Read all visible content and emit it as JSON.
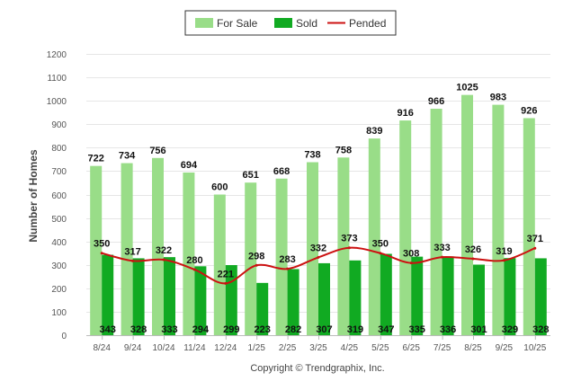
{
  "chart_data": {
    "type": "bar",
    "ylabel": "Number of Homes",
    "xlabel": "",
    "ylim": [
      0,
      1200
    ],
    "yticks": [
      0,
      100,
      200,
      300,
      400,
      500,
      600,
      700,
      800,
      900,
      1000,
      1100,
      1200
    ],
    "grid": true,
    "legend_position": "top-center",
    "categories": [
      "8/24",
      "9/24",
      "10/24",
      "11/24",
      "12/24",
      "1/25",
      "2/25",
      "3/25",
      "4/25",
      "5/25",
      "6/25",
      "7/25",
      "8/25",
      "9/25",
      "10/25"
    ],
    "series": [
      {
        "name": "For Sale",
        "kind": "bar",
        "color": "#99dd88",
        "values": [
          722,
          734,
          756,
          694,
          600,
          651,
          668,
          738,
          758,
          839,
          916,
          966,
          1025,
          983,
          926
        ]
      },
      {
        "name": "Sold",
        "kind": "bar",
        "color": "#11aa22",
        "values": [
          343,
          328,
          333,
          294,
          299,
          223,
          282,
          307,
          319,
          347,
          335,
          336,
          301,
          329,
          328
        ]
      },
      {
        "name": "Pended",
        "kind": "line",
        "color": "#cc1111",
        "values": [
          350,
          317,
          322,
          280,
          221,
          298,
          283,
          332,
          373,
          350,
          308,
          333,
          326,
          319,
          371
        ]
      }
    ]
  },
  "footer": {
    "credit": "Copyright © Trendgraphix, Inc."
  }
}
